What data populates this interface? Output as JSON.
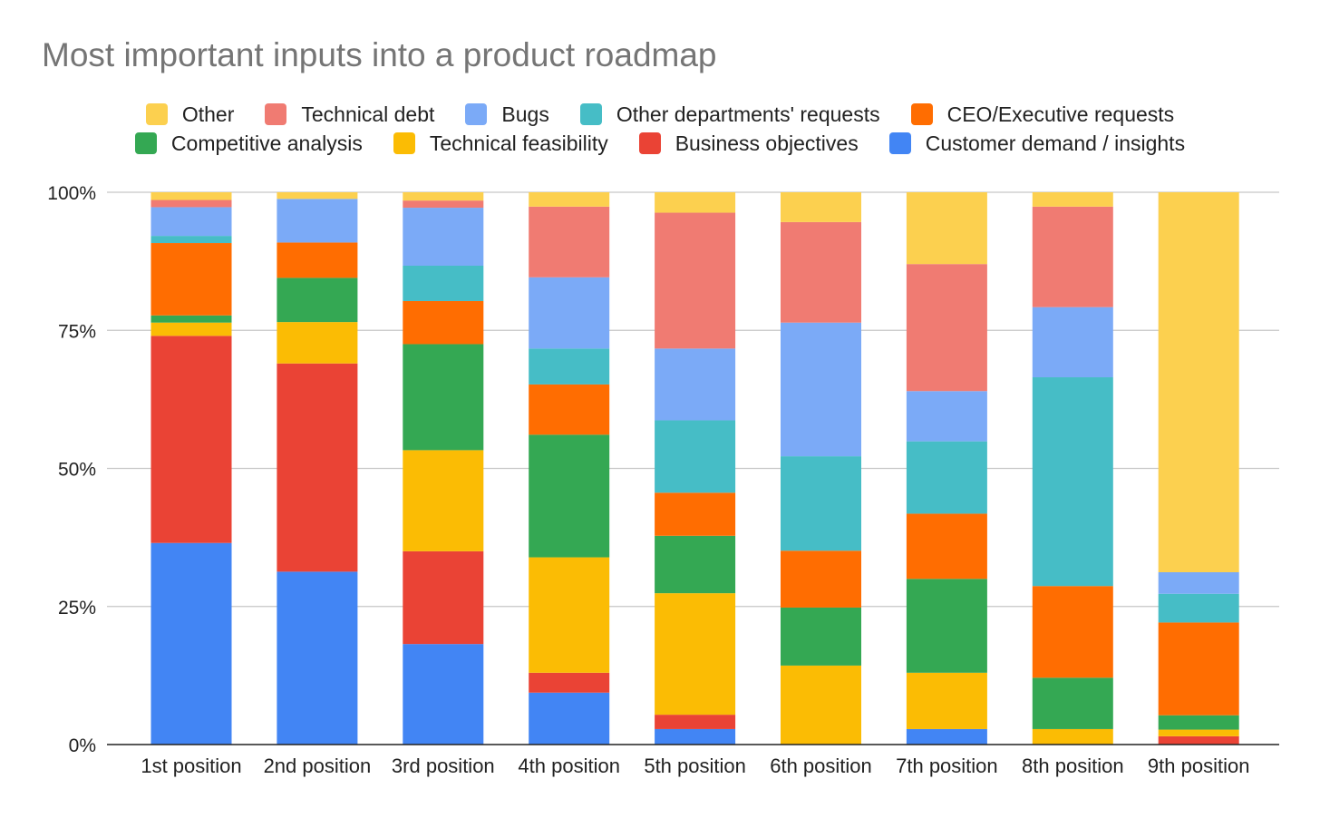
{
  "chart_data": {
    "type": "bar",
    "stacked": true,
    "normalized": true,
    "title": "Most important inputs into a product roadmap",
    "xlabel": "",
    "ylabel": "",
    "ylim": [
      0,
      100
    ],
    "y_ticks": [
      "0%",
      "25%",
      "50%",
      "75%",
      "100%"
    ],
    "grid": true,
    "legend_position": "top",
    "legend_order": [
      "Other",
      "Technical debt",
      "Bugs",
      "Other departments' requests",
      "CEO/Executive requests",
      "Competitive analysis",
      "Technical feasibility",
      "Business objectives",
      "Customer demand / insights"
    ],
    "categories": [
      "1st position",
      "2nd position",
      "3rd position",
      "4th position",
      "5th position",
      "6th position",
      "7th position",
      "8th position",
      "9th position"
    ],
    "series": [
      {
        "name": "Customer demand / insights",
        "color": "#4285f4",
        "values": [
          36.5,
          31.3,
          18.2,
          9.4,
          2.8,
          0.0,
          2.8,
          0.0,
          0.0
        ]
      },
      {
        "name": "Business objectives",
        "color": "#ea4335",
        "values": [
          37.5,
          37.7,
          16.8,
          3.6,
          2.6,
          0.0,
          0.0,
          0.0,
          1.5
        ]
      },
      {
        "name": "Technical feasibility",
        "color": "#fbbc04",
        "values": [
          2.4,
          7.5,
          18.3,
          20.9,
          22.0,
          14.3,
          10.2,
          2.8,
          1.2
        ]
      },
      {
        "name": "Competitive analysis",
        "color": "#34a853",
        "values": [
          1.3,
          8.0,
          19.2,
          22.2,
          10.4,
          10.5,
          17.0,
          9.3,
          2.6
        ]
      },
      {
        "name": "CEO/Executive requests",
        "color": "#ff6d01",
        "values": [
          13.1,
          6.4,
          7.8,
          9.1,
          7.8,
          10.3,
          11.8,
          16.6,
          16.8
        ]
      },
      {
        "name": "Other departments' requests",
        "color": "#46bdc6",
        "values": [
          1.3,
          0.0,
          6.4,
          6.5,
          13.1,
          17.1,
          13.1,
          37.8,
          5.2
        ]
      },
      {
        "name": "Bugs",
        "color": "#7baaf7",
        "values": [
          5.2,
          7.9,
          10.5,
          12.9,
          13.0,
          24.2,
          9.1,
          12.7,
          3.9
        ]
      },
      {
        "name": "Technical debt",
        "color": "#f07b72",
        "values": [
          1.3,
          0.0,
          1.3,
          12.8,
          24.6,
          18.2,
          23.0,
          18.2,
          0.0
        ]
      },
      {
        "name": "Other",
        "color": "#fcd04f",
        "values": [
          1.4,
          1.2,
          1.5,
          2.6,
          3.7,
          5.4,
          13.0,
          2.6,
          68.8
        ]
      }
    ]
  }
}
